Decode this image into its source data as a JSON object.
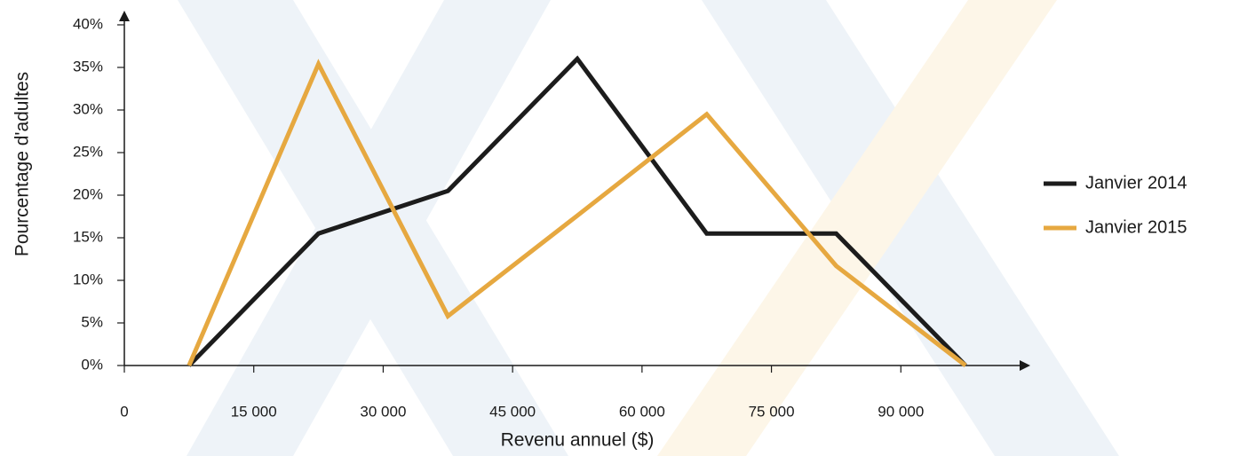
{
  "chart_data": {
    "type": "line",
    "x_label": "Revenu annuel ($)",
    "y_label": "Pourcentage d'adultes",
    "x": [
      7500,
      22500,
      37500,
      52500,
      67500,
      82500,
      97500
    ],
    "series": [
      {
        "name": "Janvier 2014",
        "color": "#1c1c1c",
        "values": [
          0,
          15.5,
          20.5,
          36,
          15.5,
          15.5,
          0
        ]
      },
      {
        "name": "Janvier 2015",
        "color": "#e6a840",
        "values": [
          0,
          35.4,
          5.8,
          17.6,
          29.5,
          11.7,
          0
        ]
      }
    ],
    "xlim": [
      0,
      105000
    ],
    "ylim": [
      0,
      40
    ],
    "xticks": [
      0,
      {
        "value": 15000,
        "label": "15 000"
      },
      {
        "value": 30000,
        "label": "30 000"
      },
      {
        "value": 45000,
        "label": "45 000"
      },
      {
        "value": 60000,
        "label": "60 000"
      },
      {
        "value": 75000,
        "label": "75 000"
      },
      {
        "value": 90000,
        "label": "90 000"
      }
    ],
    "yticks": [
      {
        "value": 0,
        "label": "0%"
      },
      {
        "value": 5,
        "label": "5%"
      },
      {
        "value": 10,
        "label": "10%"
      },
      {
        "value": 15,
        "label": "15%"
      },
      {
        "value": 20,
        "label": "20%"
      },
      {
        "value": 25,
        "label": "25%"
      },
      {
        "value": 30,
        "label": "30%"
      },
      {
        "value": 35,
        "label": "35%"
      },
      {
        "value": 40,
        "label": "40%"
      }
    ],
    "legend": "right"
  }
}
